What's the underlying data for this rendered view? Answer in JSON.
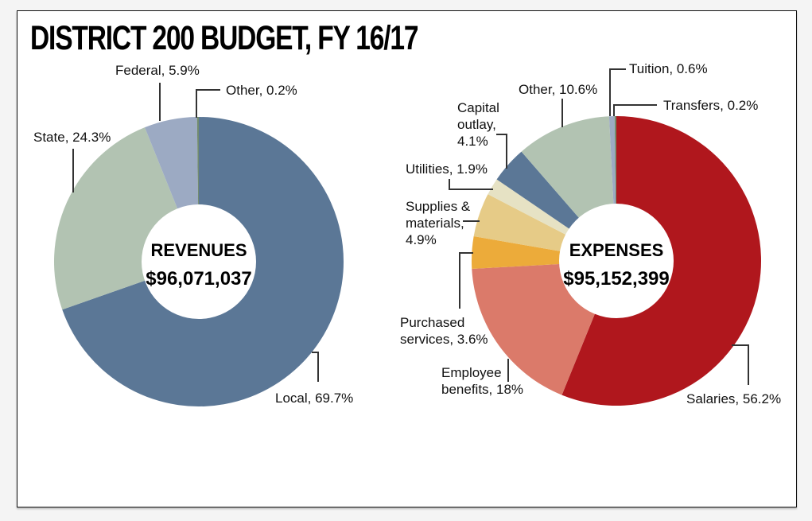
{
  "title": "DISTRICT 200 BUDGET, FY 16/17",
  "chart_data": [
    {
      "type": "pie",
      "variant": "donut",
      "name": "revenues",
      "center_title": "REVENUES",
      "center_value": "$96,071,037",
      "slices": [
        {
          "label": "Local",
          "value": 69.7,
          "display": "Local, 69.7%",
          "color": "#5b7796"
        },
        {
          "label": "State",
          "value": 24.3,
          "display": "State, 24.3%",
          "color": "#b2c3b2"
        },
        {
          "label": "Federal",
          "value": 5.9,
          "display": "Federal, 5.9%",
          "color": "#9caac3"
        },
        {
          "label": "Other",
          "value": 0.2,
          "display": "Other, 0.2%",
          "color": "#738c6e"
        }
      ]
    },
    {
      "type": "pie",
      "variant": "donut",
      "name": "expenses",
      "center_title": "EXPENSES",
      "center_value": "$95,152,399",
      "slices": [
        {
          "label": "Salaries",
          "value": 56.2,
          "display": "Salaries, 56.2%",
          "color": "#b0171d"
        },
        {
          "label": "Employee benefits",
          "value": 18,
          "display": "Employee benefits, 18%",
          "color": "#db7a6a"
        },
        {
          "label": "Purchased services",
          "value": 3.6,
          "display": "Purchased services, 3.6%",
          "color": "#ecab3a"
        },
        {
          "label": "Supplies & materials",
          "value": 4.9,
          "display": "Supplies & materials, 4.9%",
          "color": "#e6cb87"
        },
        {
          "label": "Utilities",
          "value": 1.9,
          "display": "Utilities, 1.9%",
          "color": "#e6e2c4"
        },
        {
          "label": "Capital outlay",
          "value": 4.1,
          "display": "Capital outlay, 4.1%",
          "color": "#5b7796"
        },
        {
          "label": "Other",
          "value": 10.6,
          "display": "Other, 10.6%",
          "color": "#b2c3b2"
        },
        {
          "label": "Tuition",
          "value": 0.6,
          "display": "Tuition, 0.6%",
          "color": "#9caac3"
        },
        {
          "label": "Transfers",
          "value": 0.2,
          "display": "Transfers, 0.2%",
          "color": "#738c6e"
        }
      ]
    }
  ],
  "labels": {
    "rev_local": "Local, 69.7%",
    "rev_state": "State, 24.3%",
    "rev_federal": "Federal, 5.9%",
    "rev_other": "Other, 0.2%",
    "exp_salaries": "Salaries, 56.2%",
    "exp_benefits_1": "Employee",
    "exp_benefits_2": "benefits, 18%",
    "exp_purchased_1": "Purchased",
    "exp_purchased_2": "services, 3.6%",
    "exp_supplies_1": "Supplies &",
    "exp_supplies_2": "materials,",
    "exp_supplies_3": "4.9%",
    "exp_utilities": "Utilities, 1.9%",
    "exp_capital_1": "Capital",
    "exp_capital_2": "outlay,",
    "exp_capital_3": "4.1%",
    "exp_other": "Other, 10.6%",
    "exp_tuition": "Tuition, 0.6%",
    "exp_transfers": "Transfers, 0.2%"
  }
}
